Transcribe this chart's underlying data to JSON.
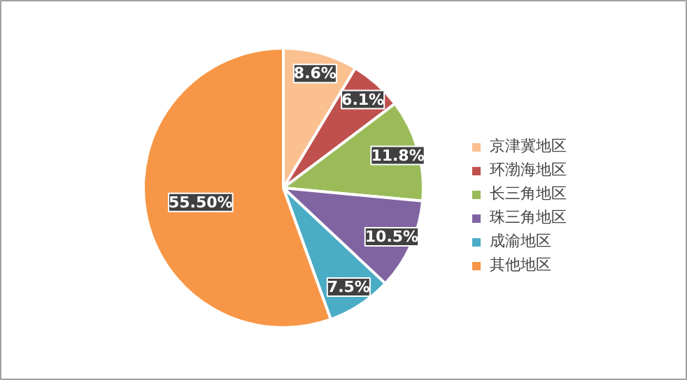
{
  "chart_data": {
    "type": "pie",
    "categories": [
      "京津冀地区",
      "环渤海地区",
      "长三角地区",
      "珠三角地区",
      "成渝地区",
      "其他地区"
    ],
    "values": [
      8.6,
      6.1,
      11.8,
      10.5,
      7.5,
      55.5
    ],
    "colors": [
      "#fac090",
      "#c0504d",
      "#9bbb59",
      "#8064a2",
      "#4bacc6",
      "#f79646"
    ],
    "value_labels": [
      "8.6%",
      "6.1%",
      "11.8%",
      "10.5%",
      "7.5%",
      "55.50%"
    ],
    "legend": "right"
  }
}
